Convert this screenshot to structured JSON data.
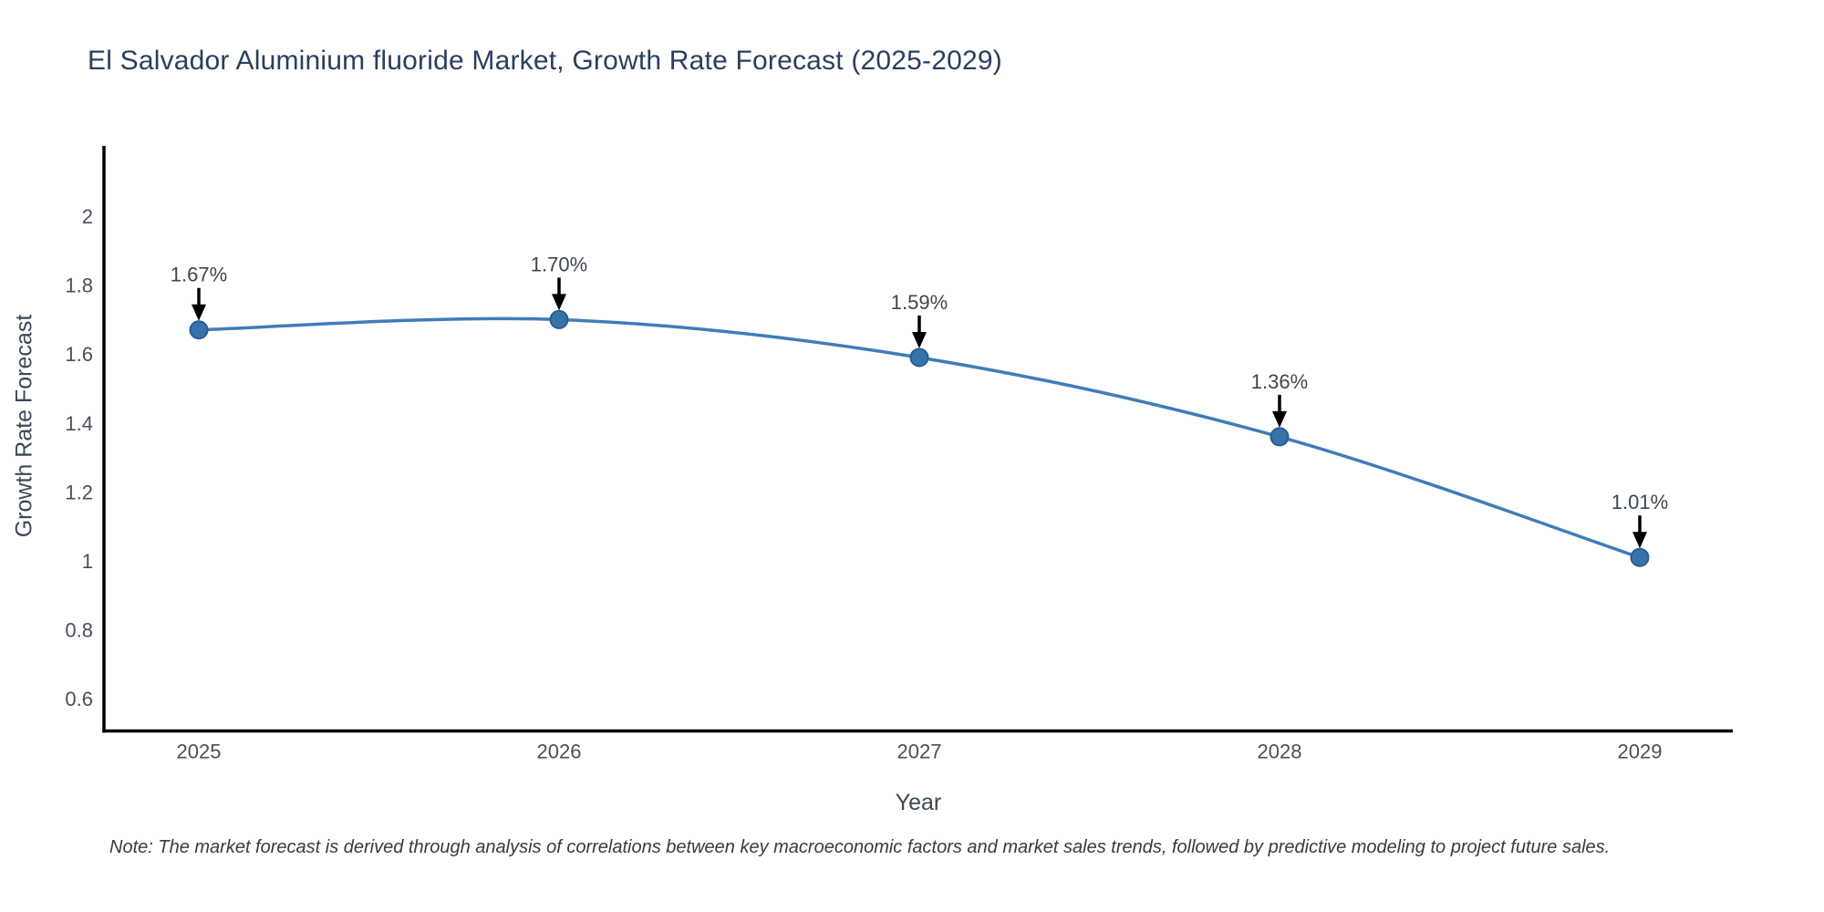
{
  "title": {
    "text": "El Salvador Aluminium fluoride Market, Growth Rate Forecast (2025-2029)",
    "color": "#2a3f5f"
  },
  "note": {
    "text": "Note: The market forecast is derived through analysis of correlations between key macroeconomic factors and market sales trends, followed by predictive modeling to project future sales."
  },
  "chart_data": {
    "type": "line",
    "title": "El Salvador Aluminium fluoride Market, Growth Rate Forecast (2025-2029)",
    "xlabel": "Year",
    "ylabel": "Growth Rate Forecast",
    "x": [
      2025,
      2026,
      2027,
      2028,
      2029
    ],
    "values": [
      1.67,
      1.7,
      1.59,
      1.36,
      1.01
    ],
    "point_labels": [
      "1.67%",
      "1.70%",
      "1.59%",
      "1.36%",
      "1.01%"
    ],
    "x_tick_labels": [
      "2025",
      "2026",
      "2027",
      "2028",
      "2029"
    ],
    "y_ticks": [
      2,
      1.8,
      1.6,
      1.4,
      1.2,
      1,
      0.8,
      0.6
    ],
    "y_tick_labels": [
      "2",
      "1.8",
      "1.6",
      "1.4",
      "1.2",
      "1",
      "0.8",
      "0.6"
    ],
    "ylim": [
      0.51,
      2.2
    ],
    "grid": false,
    "legend": "none",
    "marker_size": 9.5,
    "line_width": 3.5,
    "colors": {
      "line": "#3f7db8",
      "marker": "#3673ab",
      "marker_edge": "#2a5d8f",
      "axis": "#000000",
      "tick_text": "#47505a",
      "annotation_text": "#3d4650",
      "arrow": "#000000"
    }
  }
}
